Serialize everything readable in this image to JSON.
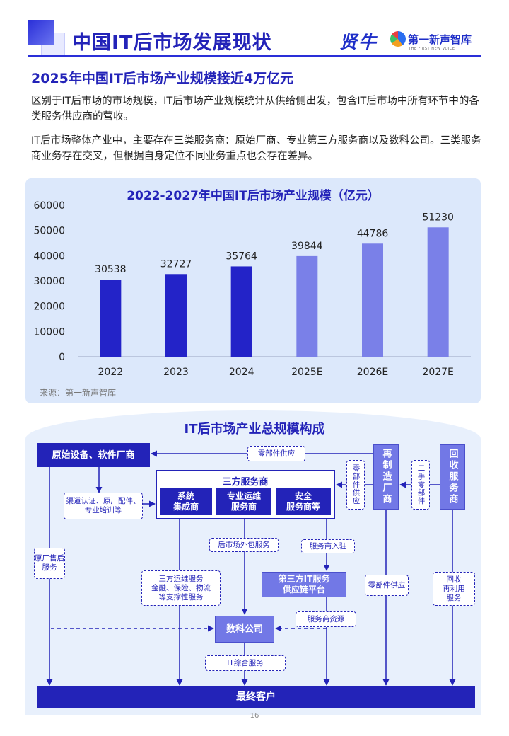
{
  "header": {
    "title": "中国IT后市场发展现状",
    "brand1": "贤牛",
    "brand2": "第一新声智库",
    "brand2_sub": "THE FIRST NEW VOICE"
  },
  "subtitle": "2025年中国IT后市场产业规模接近4万亿元",
  "paragraphs": [
    "区别于IT后市场的市场规模，IT后市场产业规模统计从供给侧出发，包含IT后市场中所有环节中的各类服务供应商的营收。",
    "IT后市场整体产业中，主要存在三类服务商：原始厂商、专业第三方服务商以及数科公司。三类服务商业务存在交叉，但根据自身定位不同业务重点也会存在差异。"
  ],
  "chart_data": {
    "type": "bar",
    "title": "2022-2027年中国IT后市场产业规模（亿元）",
    "categories": [
      "2022",
      "2023",
      "2024",
      "2025E",
      "2026E",
      "2027E"
    ],
    "values": [
      30538,
      32727,
      35764,
      39844,
      44786,
      51230
    ],
    "ylim": [
      0,
      60000
    ],
    "yticks": [
      "0",
      "10000",
      "20000",
      "30000",
      "40000",
      "50000",
      "60000"
    ],
    "colors": [
      "#2323c8",
      "#2323c8",
      "#2323c8",
      "#7a80e8",
      "#7a80e8",
      "#7a80e8"
    ],
    "source": "来源：第一新声智库"
  },
  "diagram": {
    "title": "IT后市场产业总规模构成",
    "oem": "原始设备、软件厂商",
    "third_party": "三方服务商",
    "sys_integrator": "系统\n集成商",
    "ops_provider": "专业运维\n服务商",
    "security_provider": "安全\n服务商等",
    "remanufacturer": "再制造厂商",
    "recycler": "回收服务商",
    "supply_platform": "第三方IT服务\n供应链平台",
    "fintech": "数科公司",
    "end_customer": "最终客户",
    "labels": {
      "parts_supply_top": "零部件供应",
      "parts_supply_v": "零部件供应",
      "second_hand": "二手零部件",
      "certification": "渠道认证、原厂配件、专业培训等",
      "oem_aftersales": "原厂售后服务",
      "outsourcing": "后市场外包服务",
      "provider_entry": "服务商入驻",
      "third_party_ops": "三方运维服务\n金融、保险、物流\n等支撑性服务",
      "parts_supply_bottom": "零部件供应",
      "recycle_reuse": "回收\n再利用\n服务",
      "provider_resources": "服务商资源",
      "it_integrated": "IT综合服务"
    }
  },
  "page_number": "16"
}
